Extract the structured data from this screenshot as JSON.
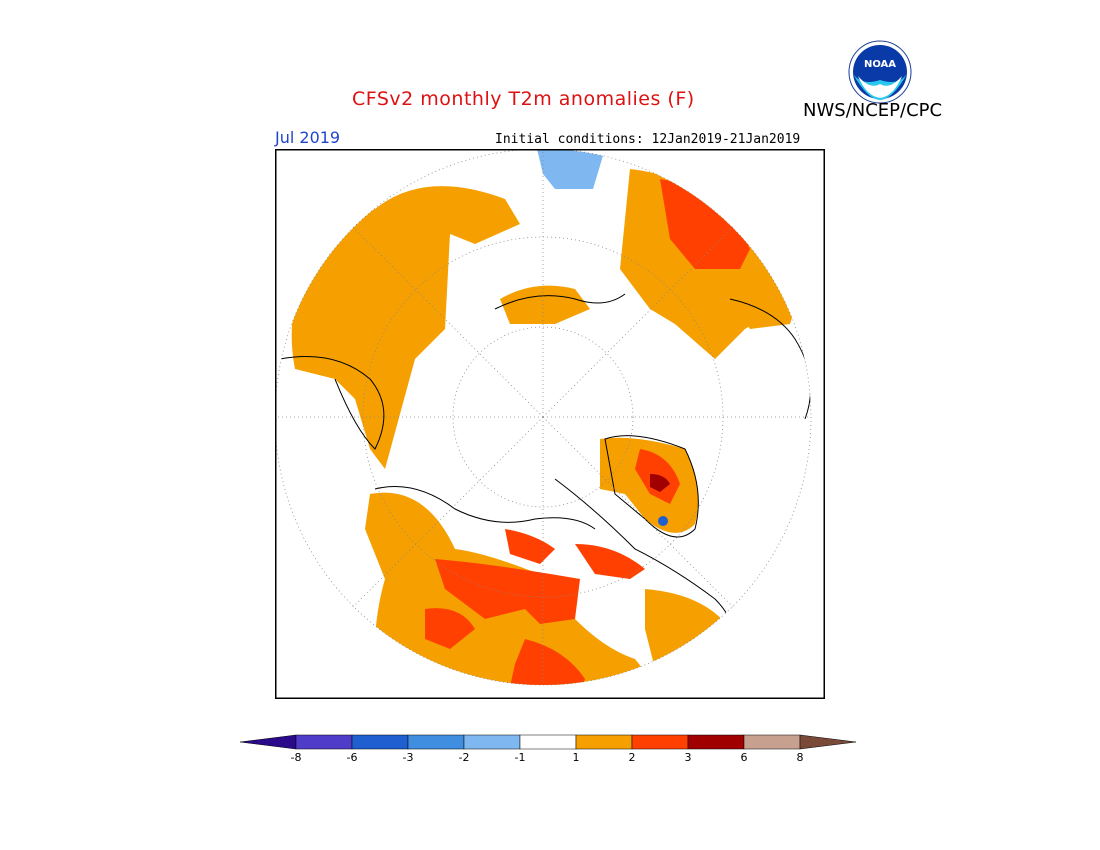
{
  "header": {
    "title": "CFSv2 monthly T2m anomalies (F)",
    "title_color": "#dd1111",
    "agency": "NWS/NCEP/CPC",
    "month": "Jul 2019",
    "month_color": "#2244cc",
    "initial_conditions": "Initial conditions: 12Jan2019-21Jan2019"
  },
  "logo": {
    "text": "NOAA",
    "icon": "noaa-logo-icon"
  },
  "colorbar": {
    "colors": [
      "#2a0a8a",
      "#4f3cc8",
      "#1f5fcf",
      "#3f8ee0",
      "#7fb8f0",
      "#ffffff",
      "#f5a000",
      "#ff4000",
      "#a00000",
      "#c8a090",
      "#7a4a38"
    ],
    "ticks": [
      "-8",
      "-6",
      "-3",
      "-2",
      "-1",
      "1",
      "2",
      "3",
      "6",
      "8"
    ]
  },
  "map": {
    "projection": "north polar stereographic",
    "anomaly_colors": {
      "light": "#f5a000",
      "warm": "#ff4000",
      "hot": "#a00000",
      "cool": "#7fb8f0",
      "cold": "#1f5fcf"
    }
  }
}
